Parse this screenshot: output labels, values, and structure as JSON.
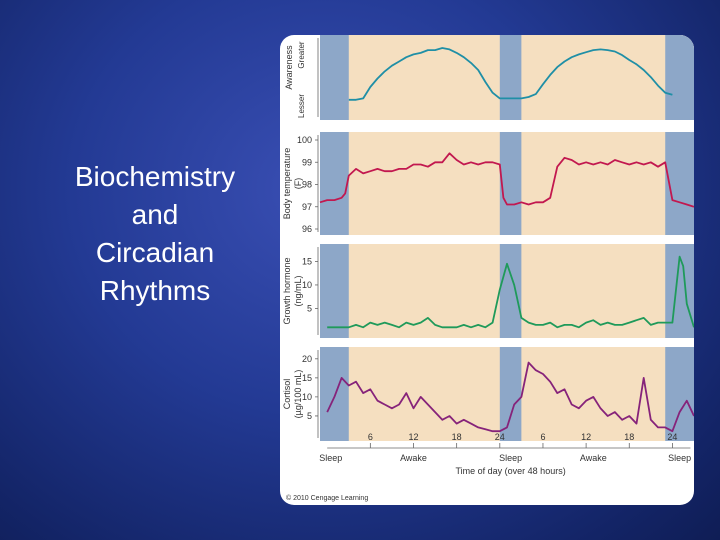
{
  "slide": {
    "title_lines": [
      "Biochemistry",
      "and",
      "Circadian",
      "Rhythms"
    ]
  },
  "figure": {
    "credit": "© 2010 Cengage Learning"
  },
  "colors": {
    "awake_band": "#f5dfc0",
    "sleep_band": "#8da7c8",
    "awareness": "#1f8fa6",
    "body_temperature": "#c2184f",
    "growth_hormone": "#1f9a5a",
    "cortisol": "#86237a"
  },
  "chart_data": [
    {
      "type": "line",
      "id": "awareness",
      "ylabel": "Awareness",
      "y_axis_words": [
        "Greater",
        "Lesser"
      ],
      "ylim": [
        0,
        1
      ],
      "x": [
        3,
        4,
        5,
        6,
        7,
        8,
        9,
        10,
        11,
        12,
        13,
        14,
        15,
        16,
        17,
        18,
        19,
        20,
        21,
        22,
        23,
        24,
        27,
        28,
        29,
        30,
        31,
        32,
        33,
        34,
        35,
        36,
        37,
        38,
        39,
        40,
        41,
        42,
        43,
        44,
        45,
        46,
        47,
        48
      ],
      "values": [
        0.2,
        0.2,
        0.22,
        0.38,
        0.5,
        0.6,
        0.68,
        0.74,
        0.8,
        0.84,
        0.86,
        0.9,
        0.9,
        0.93,
        0.91,
        0.86,
        0.8,
        0.72,
        0.62,
        0.45,
        0.3,
        0.22,
        0.22,
        0.24,
        0.28,
        0.42,
        0.55,
        0.66,
        0.74,
        0.8,
        0.84,
        0.87,
        0.9,
        0.91,
        0.9,
        0.88,
        0.83,
        0.76,
        0.7,
        0.62,
        0.52,
        0.4,
        0.3,
        0.27
      ]
    },
    {
      "type": "line",
      "id": "body_temperature",
      "ylabel": "Body temperature (F)",
      "yticks": [
        100,
        99,
        98,
        97,
        96
      ],
      "ylim": [
        96,
        100
      ],
      "x": [
        -1,
        0,
        1,
        2,
        2.5,
        3,
        4,
        5,
        6,
        7,
        8,
        9,
        10,
        11,
        12,
        13,
        14,
        15,
        16,
        17,
        18,
        19,
        20,
        21,
        22,
        23,
        24,
        24.5,
        25,
        26,
        27,
        28,
        29,
        30,
        31,
        32,
        33,
        34,
        35,
        36,
        37,
        38,
        39,
        40,
        41,
        42,
        43,
        44,
        45,
        46,
        47,
        48,
        49,
        50,
        51
      ],
      "values": [
        97.2,
        97.3,
        97.3,
        97.4,
        97.6,
        98.4,
        98.7,
        98.5,
        98.6,
        98.7,
        98.6,
        98.6,
        98.7,
        98.7,
        98.9,
        98.9,
        98.8,
        99.0,
        99.0,
        99.4,
        99.1,
        98.9,
        99.0,
        98.9,
        99.0,
        99.0,
        98.9,
        97.4,
        97.1,
        97.1,
        97.2,
        97.1,
        97.2,
        97.2,
        97.4,
        98.8,
        99.2,
        99.1,
        98.9,
        99.0,
        98.9,
        99.0,
        98.9,
        99.1,
        99.0,
        98.9,
        99.0,
        98.9,
        99.0,
        98.8,
        99.0,
        97.3,
        97.2,
        97.1,
        97.0
      ]
    },
    {
      "type": "line",
      "id": "growth_hormone",
      "ylabel": "Growth hormone (ng/mL)",
      "yticks": [
        15,
        10,
        5
      ],
      "ylim": [
        0,
        17
      ],
      "x": [
        0,
        1,
        2,
        3,
        4,
        5,
        6,
        7,
        8,
        9,
        10,
        11,
        12,
        13,
        14,
        15,
        16,
        17,
        18,
        19,
        20,
        21,
        22,
        23,
        24,
        25,
        26,
        27,
        28,
        29,
        30,
        31,
        32,
        33,
        34,
        35,
        36,
        37,
        38,
        39,
        40,
        41,
        42,
        43,
        44,
        45,
        46,
        47,
        48,
        49,
        49.5,
        50,
        51
      ],
      "values": [
        1,
        1,
        1,
        1,
        1.5,
        1,
        2,
        1.5,
        2,
        1.5,
        1,
        2,
        1.5,
        2,
        3,
        1.5,
        1,
        1,
        1,
        1.5,
        1,
        1.5,
        1,
        2,
        9,
        14.5,
        10,
        3,
        2,
        1.5,
        1.5,
        2,
        1,
        1.5,
        1.5,
        1,
        2,
        2.5,
        1.5,
        2,
        1.5,
        1.5,
        2,
        2.5,
        3,
        1.5,
        2,
        2,
        2,
        16,
        14,
        6,
        1
      ]
    },
    {
      "type": "line",
      "id": "cortisol",
      "ylabel": "Cortisol (µg/100 mL)",
      "yticks": [
        20,
        15,
        10,
        5
      ],
      "ylim": [
        0,
        21
      ],
      "x": [
        0,
        1,
        2,
        3,
        4,
        5,
        6,
        7,
        8,
        9,
        10,
        11,
        12,
        13,
        14,
        15,
        16,
        17,
        18,
        19,
        20,
        21,
        22,
        23,
        24,
        25,
        26,
        27,
        28,
        29,
        30,
        31,
        32,
        33,
        34,
        35,
        36,
        37,
        38,
        39,
        40,
        41,
        42,
        43,
        44,
        45,
        46,
        47,
        48,
        49,
        50,
        51
      ],
      "values": [
        6,
        10,
        15,
        13,
        14,
        11,
        12,
        9,
        8,
        7,
        8,
        11,
        7,
        10,
        8,
        6,
        4,
        5,
        3,
        4,
        3,
        2,
        1.5,
        1,
        1,
        2,
        8,
        10,
        19,
        17,
        16,
        14,
        11,
        12,
        8,
        7,
        9,
        10,
        7,
        5,
        6,
        4,
        5,
        3,
        15,
        4,
        2,
        2,
        1,
        6,
        9,
        5
      ]
    }
  ],
  "x_axis": {
    "ticks": [
      "6",
      "12",
      "18",
      "24",
      "6",
      "12",
      "18",
      "24"
    ],
    "phase_labels": [
      "Sleep",
      "Awake",
      "Sleep",
      "Awake",
      "Sleep"
    ],
    "xlabel": "Time of day (over 48 hours)"
  }
}
